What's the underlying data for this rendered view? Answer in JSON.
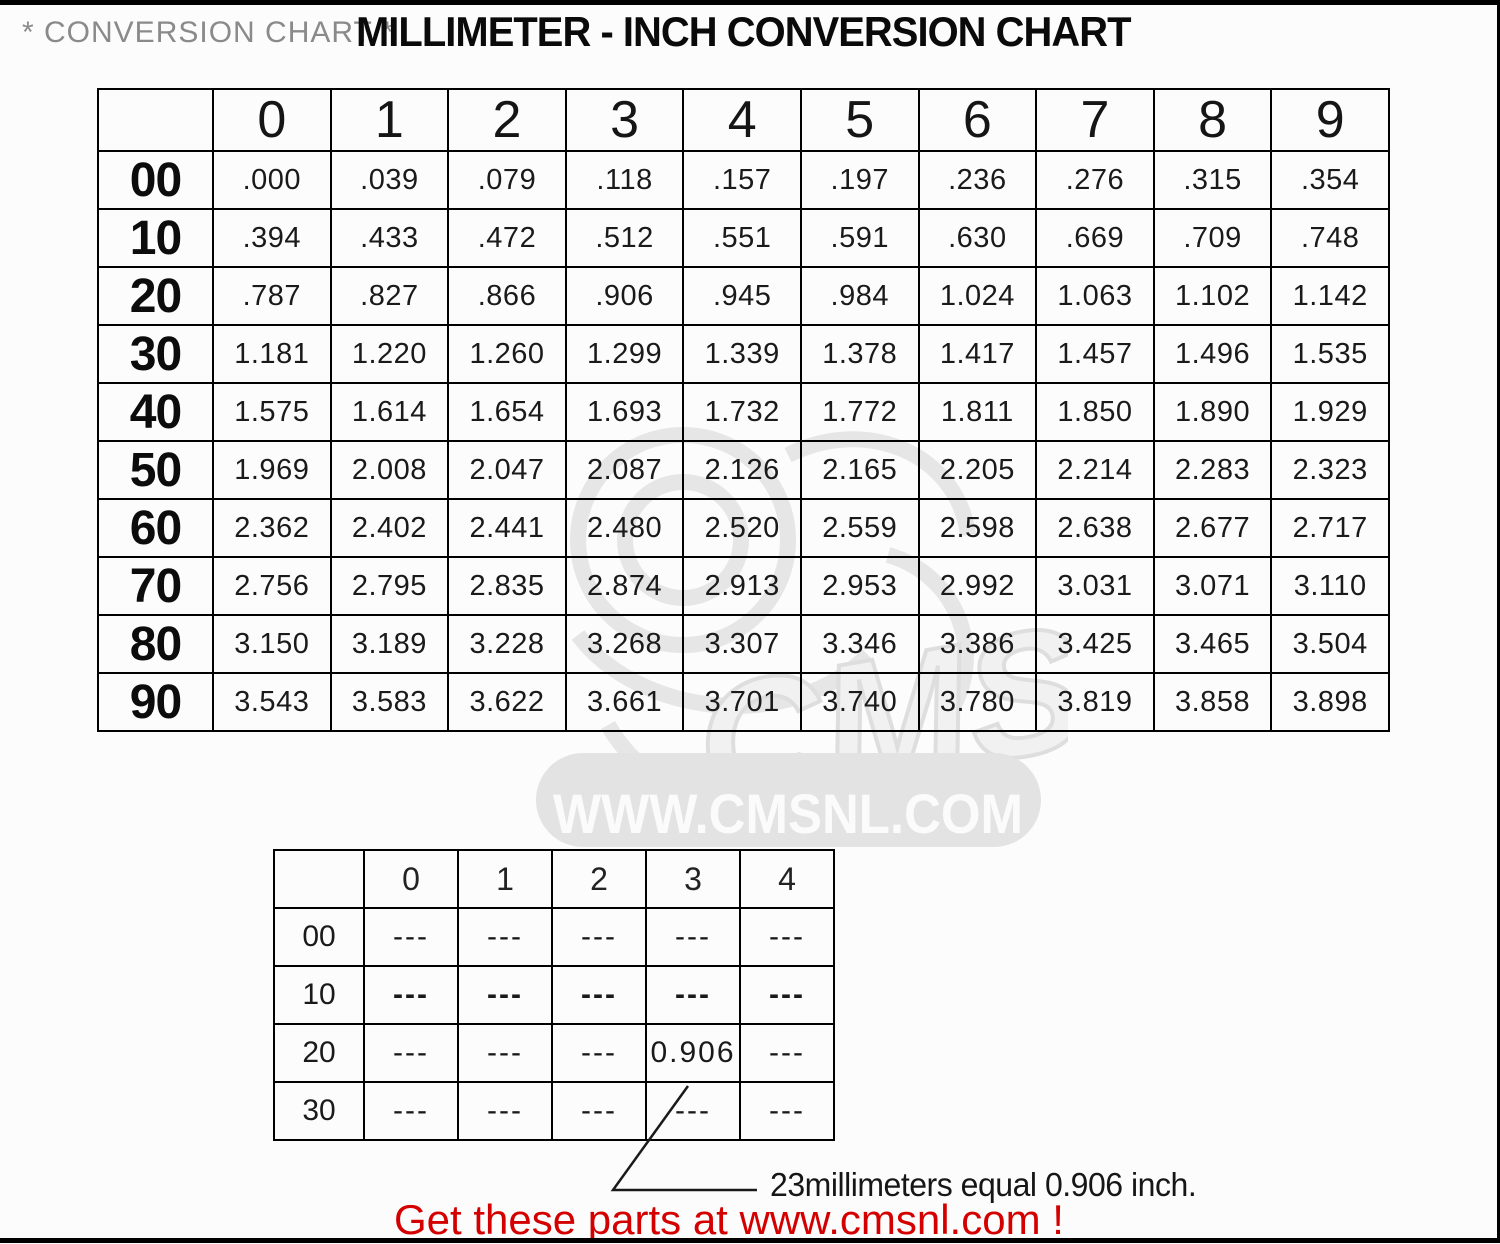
{
  "page": {
    "title_left": "* CONVERSION CHART *",
    "title_main": "MILLIMETER - INCH CONVERSION CHART",
    "annotation": "23millimeters equal 0.906 inch.",
    "footer_red": "Get these parts at www.cmsnl.com !",
    "watermark": {
      "logo_text": "CMS",
      "banner_text": "WWW.CMSNL.COM"
    }
  },
  "colors": {
    "footer_red": "#d40000",
    "title_gray": "#8a8a8a",
    "watermark_gray": "#e4e4e4",
    "border_black": "#000000"
  },
  "main_table": {
    "col_headers": [
      "0",
      "1",
      "2",
      "3",
      "4",
      "5",
      "6",
      "7",
      "8",
      "9"
    ],
    "rows": [
      {
        "label": "00",
        "values": [
          ".000",
          ".039",
          ".079",
          ".118",
          ".157",
          ".197",
          ".236",
          ".276",
          ".315",
          ".354"
        ]
      },
      {
        "label": "10",
        "values": [
          ".394",
          ".433",
          ".472",
          ".512",
          ".551",
          ".591",
          ".630",
          ".669",
          ".709",
          ".748"
        ]
      },
      {
        "label": "20",
        "values": [
          ".787",
          ".827",
          ".866",
          ".906",
          ".945",
          ".984",
          "1.024",
          "1.063",
          "1.102",
          "1.142"
        ]
      },
      {
        "label": "30",
        "values": [
          "1.181",
          "1.220",
          "1.260",
          "1.299",
          "1.339",
          "1.378",
          "1.417",
          "1.457",
          "1.496",
          "1.535"
        ]
      },
      {
        "label": "40",
        "values": [
          "1.575",
          "1.614",
          "1.654",
          "1.693",
          "1.732",
          "1.772",
          "1.811",
          "1.850",
          "1.890",
          "1.929"
        ]
      },
      {
        "label": "50",
        "values": [
          "1.969",
          "2.008",
          "2.047",
          "2.087",
          "2.126",
          "2.165",
          "2.205",
          "2.214",
          "2.283",
          "2.323"
        ]
      },
      {
        "label": "60",
        "values": [
          "2.362",
          "2.402",
          "2.441",
          "2.480",
          "2.520",
          "2.559",
          "2.598",
          "2.638",
          "2.677",
          "2.717"
        ]
      },
      {
        "label": "70",
        "values": [
          "2.756",
          "2.795",
          "2.835",
          "2.874",
          "2.913",
          "2.953",
          "2.992",
          "3.031",
          "3.071",
          "3.110"
        ]
      },
      {
        "label": "80",
        "values": [
          "3.150",
          "3.189",
          "3.228",
          "3.268",
          "3.307",
          "3.346",
          "3.386",
          "3.425",
          "3.465",
          "3.504"
        ]
      },
      {
        "label": "90",
        "values": [
          "3.543",
          "3.583",
          "3.622",
          "3.661",
          "3.701",
          "3.740",
          "3.780",
          "3.819",
          "3.858",
          "3.898"
        ]
      }
    ]
  },
  "example_table": {
    "col_headers": [
      "0",
      "1",
      "2",
      "3",
      "4"
    ],
    "rows": [
      {
        "label": "00",
        "bold": false,
        "values": [
          "---",
          "---",
          "---",
          "---",
          "---"
        ]
      },
      {
        "label": "10",
        "bold": true,
        "values": [
          "---",
          "---",
          "---",
          "---",
          "---"
        ]
      },
      {
        "label": "20",
        "bold": false,
        "values": [
          "---",
          "---",
          "---",
          "0.906",
          "---"
        ]
      },
      {
        "label": "30",
        "bold": false,
        "values": [
          "---",
          "---",
          "---",
          "---",
          "---"
        ]
      }
    ]
  },
  "chart_data": {
    "type": "table",
    "title": "MILLIMETER - INCH CONVERSION CHART",
    "row_labels_mm_tens": [
      "00",
      "10",
      "20",
      "30",
      "40",
      "50",
      "60",
      "70",
      "80",
      "90"
    ],
    "col_labels_mm_units": [
      "0",
      "1",
      "2",
      "3",
      "4",
      "5",
      "6",
      "7",
      "8",
      "9"
    ],
    "values_inches": [
      [
        0.0,
        0.039,
        0.079,
        0.118,
        0.157,
        0.197,
        0.236,
        0.276,
        0.315,
        0.354
      ],
      [
        0.394,
        0.433,
        0.472,
        0.512,
        0.551,
        0.591,
        0.63,
        0.669,
        0.709,
        0.748
      ],
      [
        0.787,
        0.827,
        0.866,
        0.906,
        0.945,
        0.984,
        1.024,
        1.063,
        1.102,
        1.142
      ],
      [
        1.181,
        1.22,
        1.26,
        1.299,
        1.339,
        1.378,
        1.417,
        1.457,
        1.496,
        1.535
      ],
      [
        1.575,
        1.614,
        1.654,
        1.693,
        1.732,
        1.772,
        1.811,
        1.85,
        1.89,
        1.929
      ],
      [
        1.969,
        2.008,
        2.047,
        2.087,
        2.126,
        2.165,
        2.205,
        2.214,
        2.283,
        2.323
      ],
      [
        2.362,
        2.402,
        2.441,
        2.48,
        2.52,
        2.559,
        2.598,
        2.638,
        2.677,
        2.717
      ],
      [
        2.756,
        2.795,
        2.835,
        2.874,
        2.913,
        2.953,
        2.992,
        3.031,
        3.071,
        3.11
      ],
      [
        3.15,
        3.189,
        3.228,
        3.268,
        3.307,
        3.346,
        3.386,
        3.425,
        3.465,
        3.504
      ],
      [
        3.543,
        3.583,
        3.622,
        3.661,
        3.701,
        3.74,
        3.78,
        3.819,
        3.858,
        3.898
      ]
    ],
    "example_highlight": {
      "mm": 23,
      "inch": 0.906
    },
    "annotation": "23millimeters equal 0.906 inch."
  }
}
